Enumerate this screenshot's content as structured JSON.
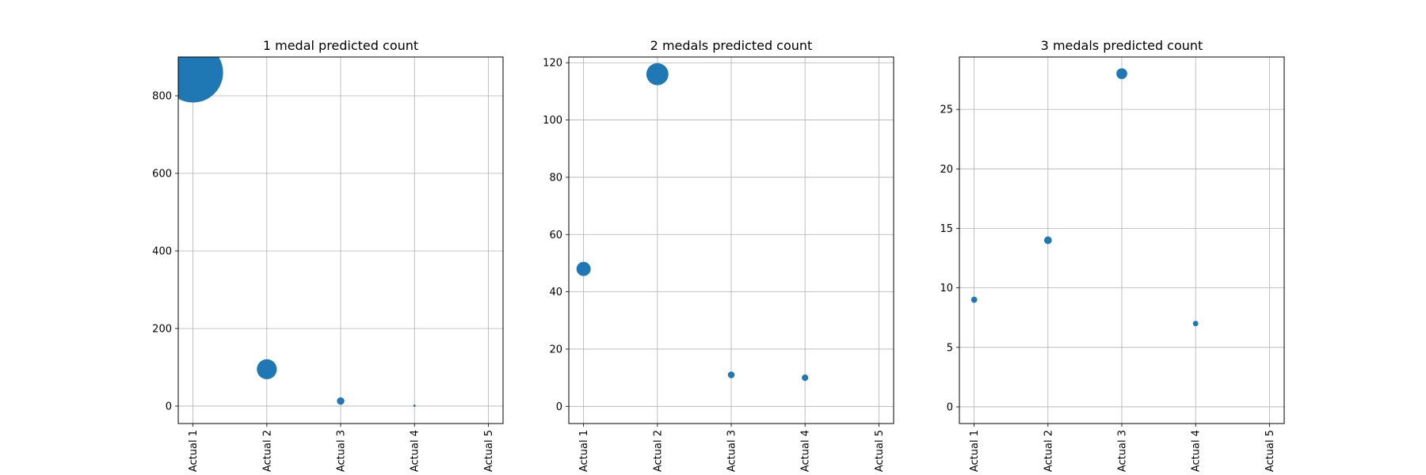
{
  "colors": {
    "marker": "#1f77b4",
    "grid": "#b0b0b0",
    "axis": "#000000",
    "background": "#ffffff"
  },
  "chart_data": [
    {
      "type": "scatter",
      "title": "1 medal predicted count",
      "categories": [
        "Actual 1",
        "Actual 2",
        "Actual 3",
        "Actual 4",
        "Actual 5"
      ],
      "x": [
        1,
        2,
        3,
        4
      ],
      "values": [
        860,
        95,
        13,
        1
      ],
      "ylim": [
        -45,
        900
      ],
      "yticks": [
        0,
        200,
        400,
        600,
        800
      ],
      "grid": true,
      "xtick_rotation": 90
    },
    {
      "type": "scatter",
      "title": "2 medals predicted count",
      "categories": [
        "Actual 1",
        "Actual 2",
        "Actual 3",
        "Actual 4",
        "Actual 5"
      ],
      "x": [
        1,
        2,
        3,
        4
      ],
      "values": [
        48,
        116,
        11,
        10
      ],
      "ylim": [
        -6,
        122
      ],
      "yticks": [
        0,
        20,
        40,
        60,
        80,
        100,
        120
      ],
      "grid": true,
      "xtick_rotation": 90
    },
    {
      "type": "scatter",
      "title": "3 medals predicted count",
      "categories": [
        "Actual 1",
        "Actual 2",
        "Actual 3",
        "Actual 4",
        "Actual 5"
      ],
      "x": [
        1,
        2,
        3,
        4
      ],
      "values": [
        9,
        14,
        28,
        7
      ],
      "ylim": [
        -1.4,
        29.4
      ],
      "yticks": [
        0,
        5,
        10,
        15,
        20,
        25
      ],
      "grid": true,
      "xtick_rotation": 90
    }
  ]
}
